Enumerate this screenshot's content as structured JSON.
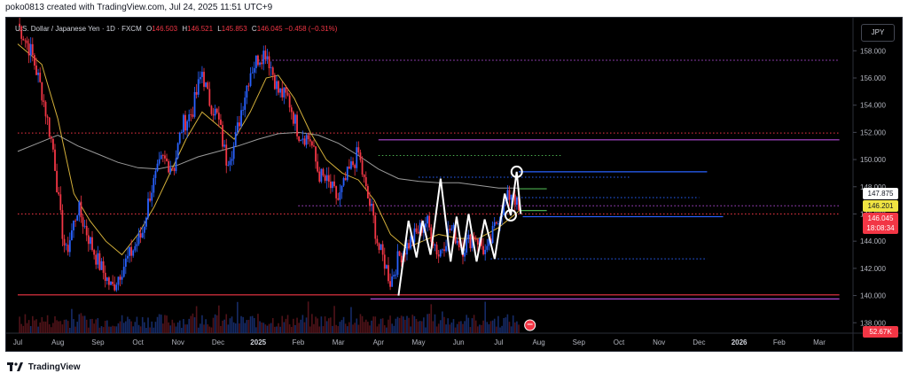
{
  "header": {
    "credit": "poko0813 created with TradingView.com, Jul 24, 2025 11:51 UTC+9"
  },
  "legend": {
    "symbol": "U.S. Dollar / Japanese Yen · 1D · FXCM",
    "open_key": "O",
    "open": "146.503",
    "high_key": "H",
    "high": "146.521",
    "low_key": "L",
    "low": "145.853",
    "close_key": "C",
    "close": "146.045",
    "change": "−0.458 (−0.31%)"
  },
  "currency_button": {
    "label": "JPY"
  },
  "price_labels": {
    "white": "147.875",
    "yellow": "146.201",
    "red_price": "146.045",
    "red_countdown": "18:08:34",
    "volume": "52.67K"
  },
  "footer": {
    "brand": "TradingView"
  },
  "colors": {
    "up": "#2962ff",
    "down": "#f23645",
    "ma_fast": "#d4b03a",
    "ma_slow": "#9b9b9b",
    "zigzag": "#ffffff",
    "support": "#f23645",
    "resistance_blue": "#2962ff",
    "magenta_dots": "#b04ad6"
  },
  "chart_data": {
    "type": "candlestick",
    "symbol": "USDJPY",
    "timeframe": "1D",
    "ylim": [
      137.3,
      160.3
    ],
    "y_ticks": [
      "158.000",
      "156.000",
      "154.000",
      "152.000",
      "150.000",
      "148.000",
      "146.000",
      "144.000",
      "142.000",
      "140.000",
      "138.000"
    ],
    "y_tick_values": [
      158,
      156,
      154,
      152,
      150,
      148,
      146,
      144,
      142,
      140,
      138
    ],
    "x_ticks": [
      {
        "label": "Jul",
        "t": 0,
        "bold": false
      },
      {
        "label": "Aug",
        "t": 1,
        "bold": false
      },
      {
        "label": "Sep",
        "t": 2,
        "bold": false
      },
      {
        "label": "Oct",
        "t": 3,
        "bold": false
      },
      {
        "label": "Nov",
        "t": 4,
        "bold": false
      },
      {
        "label": "Dec",
        "t": 5,
        "bold": false
      },
      {
        "label": "2025",
        "t": 6,
        "bold": true
      },
      {
        "label": "Feb",
        "t": 7,
        "bold": false
      },
      {
        "label": "Mar",
        "t": 8,
        "bold": false
      },
      {
        "label": "Apr",
        "t": 9,
        "bold": false
      },
      {
        "label": "May",
        "t": 10,
        "bold": false
      },
      {
        "label": "Jun",
        "t": 11,
        "bold": false
      },
      {
        "label": "Jul",
        "t": 12,
        "bold": false
      },
      {
        "label": "Aug",
        "t": 13,
        "bold": false
      },
      {
        "label": "Sep",
        "t": 14,
        "bold": false
      },
      {
        "label": "Oct",
        "t": 15,
        "bold": false
      },
      {
        "label": "Nov",
        "t": 16,
        "bold": false
      },
      {
        "label": "Dec",
        "t": 17,
        "bold": false
      },
      {
        "label": "2026",
        "t": 18,
        "bold": true
      },
      {
        "label": "Feb",
        "t": 19,
        "bold": false
      },
      {
        "label": "Mar",
        "t": 20,
        "bold": false
      }
    ],
    "price_path": [
      [
        0,
        160.0
      ],
      [
        0.35,
        157.8
      ],
      [
        0.6,
        155.0
      ],
      [
        0.9,
        150.5
      ],
      [
        1.05,
        146.0
      ],
      [
        1.2,
        143.0
      ],
      [
        1.5,
        146.5
      ],
      [
        1.8,
        144.0
      ],
      [
        2.0,
        142.5
      ],
      [
        2.35,
        140.5
      ],
      [
        2.6,
        142.0
      ],
      [
        2.9,
        143.5
      ],
      [
        3.1,
        144.5
      ],
      [
        3.3,
        147.5
      ],
      [
        3.6,
        150.0
      ],
      [
        3.9,
        149.5
      ],
      [
        4.1,
        152.5
      ],
      [
        4.35,
        153.5
      ],
      [
        4.6,
        156.5
      ],
      [
        4.75,
        154.5
      ],
      [
        5.0,
        153.0
      ],
      [
        5.2,
        150.0
      ],
      [
        5.4,
        151.0
      ],
      [
        5.6,
        154.0
      ],
      [
        5.8,
        156.5
      ],
      [
        6.0,
        157.5
      ],
      [
        6.2,
        158.0
      ],
      [
        6.35,
        156.5
      ],
      [
        6.5,
        155.0
      ],
      [
        6.75,
        154.5
      ],
      [
        7.0,
        152.0
      ],
      [
        7.3,
        151.5
      ],
      [
        7.5,
        149.0
      ],
      [
        7.8,
        148.0
      ],
      [
        8.0,
        147.0
      ],
      [
        8.25,
        149.0
      ],
      [
        8.5,
        150.5
      ],
      [
        8.7,
        147.5
      ],
      [
        8.85,
        146.0
      ],
      [
        9.0,
        143.5
      ],
      [
        9.15,
        142.5
      ],
      [
        9.3,
        141.0
      ],
      [
        9.5,
        142.8
      ],
      [
        9.8,
        144.0
      ],
      [
        10.2,
        145.5
      ],
      [
        10.5,
        143.0
      ],
      [
        10.8,
        145.0
      ],
      [
        11.1,
        143.5
      ],
      [
        11.4,
        144.5
      ],
      [
        11.7,
        143.0
      ],
      [
        12.0,
        146.0
      ],
      [
        12.2,
        147.0
      ],
      [
        12.35,
        147.8
      ],
      [
        12.5,
        146.1
      ]
    ],
    "ma_fast": [
      [
        0,
        158.5
      ],
      [
        0.6,
        157.0
      ],
      [
        1.0,
        153.0
      ],
      [
        1.4,
        147.5
      ],
      [
        1.8,
        145.5
      ],
      [
        2.2,
        144.0
      ],
      [
        2.6,
        143.0
      ],
      [
        3.0,
        144.5
      ],
      [
        3.4,
        146.5
      ],
      [
        3.8,
        149.0
      ],
      [
        4.2,
        151.5
      ],
      [
        4.6,
        153.5
      ],
      [
        5.0,
        152.5
      ],
      [
        5.4,
        151.5
      ],
      [
        5.8,
        153.5
      ],
      [
        6.2,
        156.0
      ],
      [
        6.5,
        156.2
      ],
      [
        6.9,
        154.5
      ],
      [
        7.3,
        152.0
      ],
      [
        7.7,
        150.0
      ],
      [
        8.1,
        149.0
      ],
      [
        8.5,
        148.5
      ],
      [
        8.9,
        147.0
      ],
      [
        9.3,
        144.5
      ],
      [
        9.7,
        143.5
      ],
      [
        10.1,
        144.0
      ],
      [
        10.5,
        144.5
      ],
      [
        11.0,
        144.2
      ],
      [
        11.5,
        144.2
      ],
      [
        12.0,
        145.0
      ],
      [
        12.5,
        146.2
      ]
    ],
    "ma_slow": [
      [
        0,
        150.6
      ],
      [
        0.5,
        151.2
      ],
      [
        1.0,
        151.8
      ],
      [
        1.5,
        151.0
      ],
      [
        2.0,
        150.4
      ],
      [
        2.5,
        149.8
      ],
      [
        3.0,
        149.4
      ],
      [
        3.5,
        149.3
      ],
      [
        4.0,
        149.6
      ],
      [
        4.5,
        150.2
      ],
      [
        5.0,
        150.6
      ],
      [
        5.5,
        151.0
      ],
      [
        6.0,
        151.5
      ],
      [
        6.5,
        151.9
      ],
      [
        7.0,
        152.0
      ],
      [
        7.5,
        151.8
      ],
      [
        8.0,
        151.2
      ],
      [
        8.5,
        150.3
      ],
      [
        9.0,
        149.3
      ],
      [
        9.5,
        148.6
      ],
      [
        10.0,
        148.4
      ],
      [
        10.5,
        148.3
      ],
      [
        11.0,
        148.3
      ],
      [
        11.5,
        148.1
      ],
      [
        12.0,
        147.9
      ],
      [
        12.5,
        147.9
      ]
    ],
    "zigzag": [
      [
        9.5,
        140.0
      ],
      [
        9.75,
        145.5
      ],
      [
        9.95,
        142.8
      ],
      [
        10.1,
        145.5
      ],
      [
        10.3,
        143.0
      ],
      [
        10.55,
        148.6
      ],
      [
        10.8,
        142.5
      ],
      [
        10.95,
        145.8
      ],
      [
        11.1,
        143.0
      ],
      [
        11.25,
        146.0
      ],
      [
        11.45,
        142.5
      ],
      [
        11.65,
        145.6
      ],
      [
        11.9,
        142.7
      ],
      [
        12.15,
        147.5
      ],
      [
        12.3,
        145.9
      ],
      [
        12.45,
        149.1
      ],
      [
        12.55,
        146.0
      ]
    ],
    "circles": [
      [
        12.45,
        149.1
      ],
      [
        12.3,
        145.9
      ]
    ],
    "levels": [
      {
        "price": 157.3,
        "t0": 6.0,
        "t1": 20.5,
        "color": "#b04ad6",
        "style": "dotted"
      },
      {
        "price": 151.95,
        "t0": 0,
        "t1": 20.5,
        "color": "#f23645",
        "style": "dotted"
      },
      {
        "price": 151.45,
        "t0": 9.0,
        "t1": 20.5,
        "color": "#b04ad6",
        "style": "solid"
      },
      {
        "price": 150.3,
        "t0": 9.0,
        "t1": 13.6,
        "color": "#4caf50",
        "style": "dotted"
      },
      {
        "price": 149.1,
        "t0": 12.5,
        "t1": 17.2,
        "color": "#2962ff",
        "style": "solid"
      },
      {
        "price": 148.7,
        "t0": 10.0,
        "t1": 15.3,
        "color": "#2962ff",
        "style": "dotted"
      },
      {
        "price": 147.85,
        "t0": 12.5,
        "t1": 13.2,
        "color": "#4caf50",
        "style": "solid"
      },
      {
        "price": 147.2,
        "t0": 12.3,
        "t1": 17.0,
        "color": "#2962ff",
        "style": "dotted"
      },
      {
        "price": 146.6,
        "t0": 7.0,
        "t1": 20.5,
        "color": "#b04ad6",
        "style": "dotted"
      },
      {
        "price": 146.25,
        "t0": 12.5,
        "t1": 13.2,
        "color": "#4caf50",
        "style": "solid"
      },
      {
        "price": 146.0,
        "t0": 0,
        "t1": 20.5,
        "color": "#f23645",
        "style": "dotted"
      },
      {
        "price": 145.8,
        "t0": 12.6,
        "t1": 17.6,
        "color": "#2962ff",
        "style": "solid"
      },
      {
        "price": 142.7,
        "t0": 11.8,
        "t1": 17.2,
        "color": "#2962ff",
        "style": "dotted"
      },
      {
        "price": 140.05,
        "t0": 0,
        "t1": 20.5,
        "color": "#f23645",
        "style": "solid"
      },
      {
        "price": 139.75,
        "t0": 8.8,
        "t1": 20.5,
        "color": "#b04ad6",
        "style": "solid"
      }
    ]
  }
}
